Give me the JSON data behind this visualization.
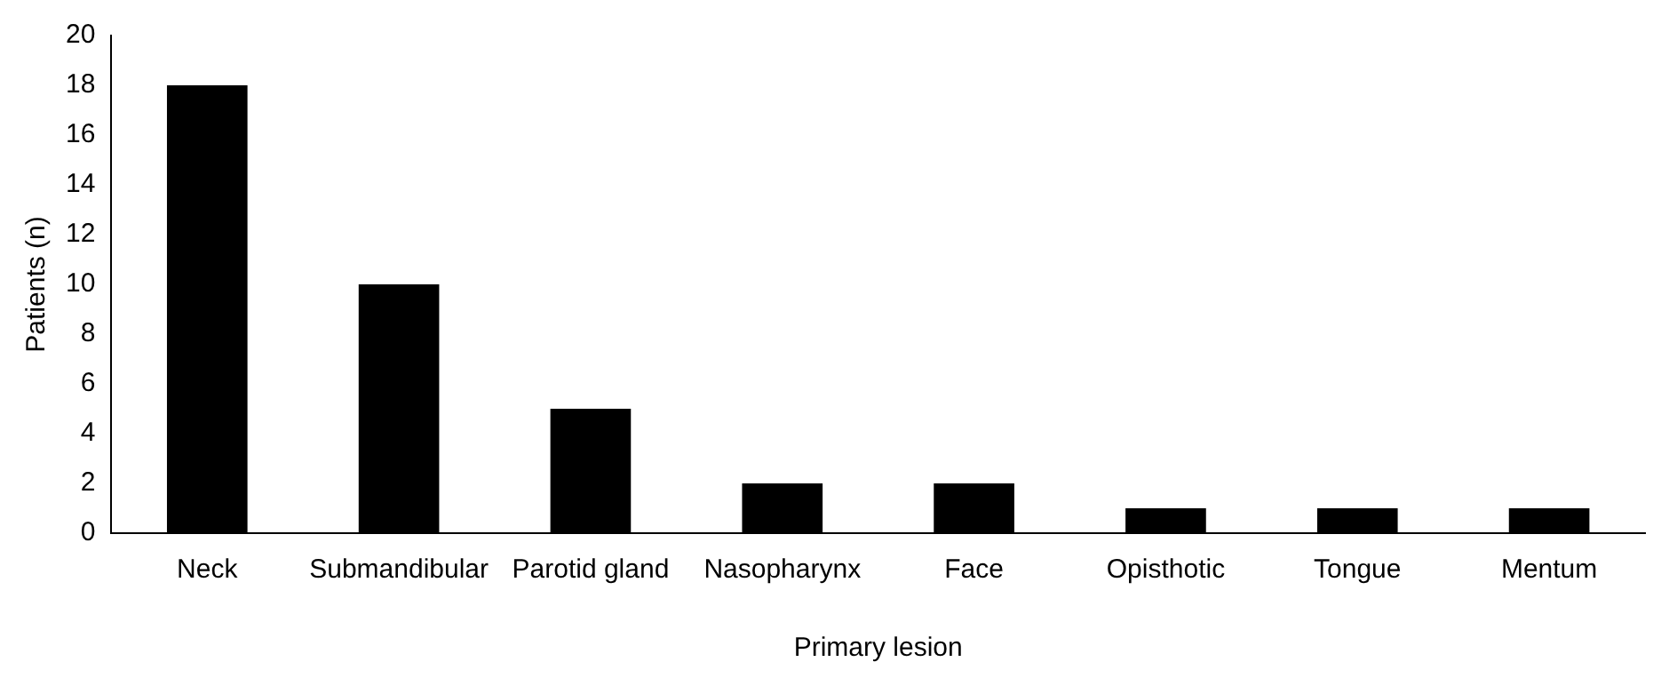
{
  "chart_data": {
    "type": "bar",
    "xlabel": "Primary lesion",
    "ylabel": "Patients (n)",
    "categories": [
      "Neck",
      "Submandibular",
      "Parotid gland",
      "Nasopharynx",
      "Face",
      "Opisthotic",
      "Tongue",
      "Mentum"
    ],
    "values": [
      18,
      10,
      5,
      2,
      2,
      1,
      1,
      1
    ],
    "color": "#000000",
    "ylim": [
      0,
      20
    ],
    "yticks": [
      0,
      2,
      4,
      6,
      8,
      10,
      12,
      14,
      16,
      18,
      20
    ],
    "grid": false,
    "legend": false
  }
}
